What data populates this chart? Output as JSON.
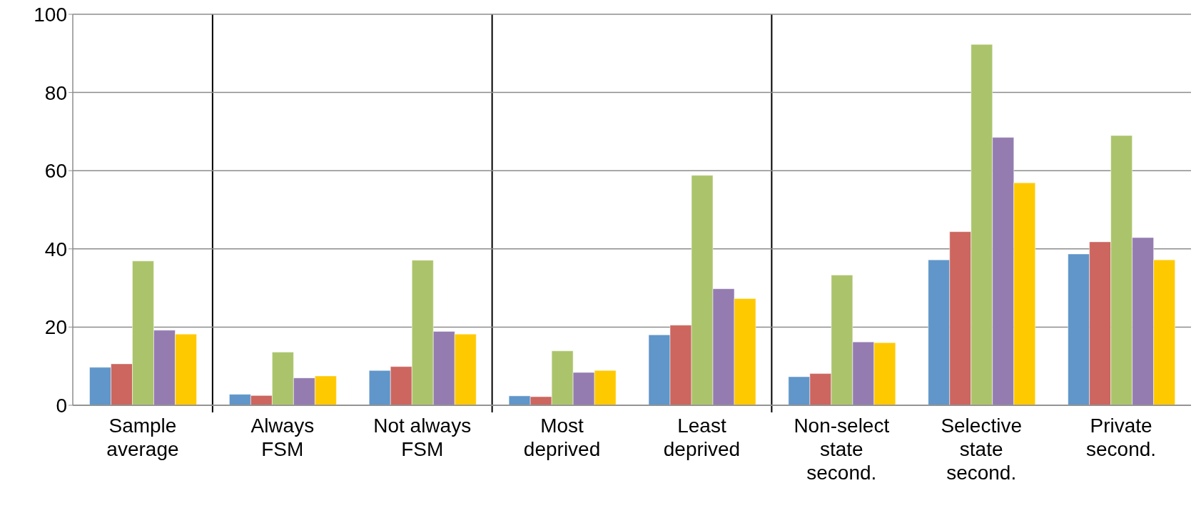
{
  "chart_data": {
    "type": "bar",
    "categories": [
      "Sample\naverage",
      "Always\nFSM",
      "Not always\nFSM",
      "Most\ndeprived",
      "Least\ndeprived",
      "Non-select\nstate\nsecond.",
      "Selective\nstate\nsecond.",
      "Private\nsecond."
    ],
    "series": [
      {
        "color": "#6096c9",
        "values": [
          9.7,
          2.8,
          8.9,
          2.4,
          18.0,
          7.3,
          37.2,
          38.7
        ]
      },
      {
        "color": "#cc665f",
        "values": [
          10.6,
          2.5,
          9.9,
          2.2,
          20.5,
          8.1,
          44.4,
          41.8
        ]
      },
      {
        "color": "#abc46c",
        "values": [
          36.9,
          13.6,
          37.1,
          13.9,
          58.8,
          33.3,
          92.3,
          69.0
        ]
      },
      {
        "color": "#947cb1",
        "values": [
          19.2,
          7.0,
          18.9,
          8.4,
          29.8,
          16.2,
          68.5,
          42.9
        ]
      },
      {
        "color": "#ffc900",
        "values": [
          18.2,
          7.5,
          18.2,
          8.9,
          27.3,
          16.0,
          56.9,
          37.2
        ]
      }
    ],
    "ylim": [
      0,
      100
    ],
    "yticks": [
      0,
      20,
      40,
      60,
      80,
      100
    ],
    "grid": "y",
    "legend": false
  }
}
